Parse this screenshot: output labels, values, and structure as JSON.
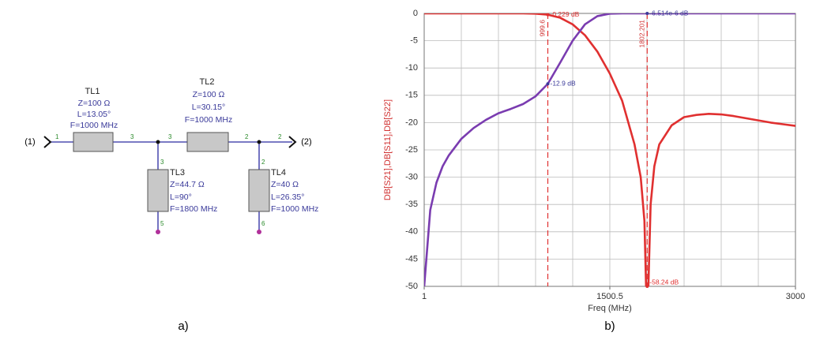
{
  "diagram": {
    "ports": [
      "(1)",
      "(2)"
    ],
    "elements": [
      {
        "name": "TL1",
        "z": "Z=100 Ω",
        "l": "L=13.05°",
        "f": "F=1000 MHz"
      },
      {
        "name": "TL2",
        "z": "Z=100 Ω",
        "l": "L=30.15°",
        "f": "F=1000 MHz"
      },
      {
        "name": "TL3",
        "z": "Z=44.7 Ω",
        "l": "L=90°",
        "f": "F=1800 MHz"
      },
      {
        "name": "TL4",
        "z": "Z=40 Ω",
        "l": "L=26.35°",
        "f": "F=1000 MHz"
      }
    ],
    "nodes": [
      "1",
      "3",
      "3",
      "3",
      "2",
      "2",
      "2",
      "5",
      "6"
    ],
    "caption": "a)"
  },
  "chart_data": {
    "type": "line",
    "xlabel": "Freq (MHz)",
    "ylabel": "DB[S21],DB[S11],DB[S22]",
    "x": [
      1,
      50,
      100,
      150,
      200,
      300,
      400,
      500,
      600,
      700,
      800,
      900,
      999.6,
      1100,
      1200,
      1300,
      1400,
      1500,
      1600,
      1700,
      1750,
      1780,
      1802.201,
      1830,
      1860,
      1900,
      2000,
      2100,
      2200,
      2300,
      2400,
      2500,
      2600,
      2700,
      2800,
      2900,
      3000
    ],
    "series": [
      {
        "color": "#e03030",
        "values": [
          0,
          0,
          0,
          0,
          0,
          0,
          0,
          0,
          0,
          0,
          0,
          -0.05,
          -0.229,
          -0.8,
          -2,
          -4,
          -7,
          -11,
          -16,
          -24,
          -30,
          -38,
          -58.24,
          -35,
          -28,
          -24,
          -20.5,
          -19,
          -18.6,
          -18.4,
          -18.5,
          -18.8,
          -19.2,
          -19.6,
          -20,
          -20.3,
          -20.6
        ]
      },
      {
        "color": "#7a3cb0",
        "values": [
          -50,
          -36,
          -31,
          -28,
          -26,
          -23,
          -21,
          -19.5,
          -18.3,
          -17.5,
          -16.6,
          -15.2,
          -12.9,
          -9,
          -5,
          -2,
          -0.5,
          -0.05,
          0,
          0,
          0,
          0,
          -6.514e-06,
          0,
          0,
          0,
          0,
          0,
          0,
          0,
          0,
          0,
          0,
          0,
          0,
          0,
          0
        ]
      }
    ],
    "xlim": [
      1,
      3000
    ],
    "ylim": [
      -50,
      0
    ],
    "xticks": [
      1,
      1500.5,
      3000
    ],
    "yticks": [
      0,
      -5,
      -10,
      -15,
      -20,
      -25,
      -30,
      -35,
      -40,
      -45,
      -50
    ],
    "grid": true,
    "markers": [
      {
        "x": 999.6,
        "label": "999.6"
      },
      {
        "x": 1802.201,
        "label": "1802.201"
      }
    ],
    "annotations": [
      {
        "text": "-0.229 dB",
        "x": 999.6,
        "y": -0.229,
        "color": "#e03030"
      },
      {
        "text": "-12.9 dB",
        "x": 999.6,
        "y": -12.9,
        "color": "#3a3a9a"
      },
      {
        "text": "-6.514e-6 dB",
        "x": 1802.201,
        "y": -6.514e-06,
        "color": "#3a3a9a"
      },
      {
        "text": "-58.24 dB",
        "x": 1802.201,
        "y": -58.24,
        "color": "#e03030"
      }
    ],
    "caption": "b)"
  }
}
